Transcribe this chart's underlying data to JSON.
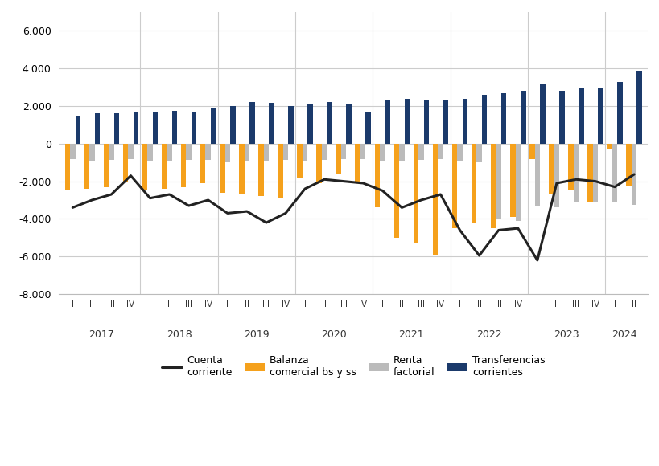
{
  "quarters": [
    "I",
    "II",
    "III",
    "IV",
    "I",
    "II",
    "III",
    "IV",
    "I",
    "II",
    "III",
    "IV",
    "I",
    "II",
    "III",
    "IV",
    "I",
    "II",
    "III",
    "IV",
    "I",
    "II",
    "III",
    "IV",
    "I",
    "II",
    "III",
    "IV",
    "I",
    "II"
  ],
  "year_labels": [
    "2017",
    "2018",
    "2019",
    "2020",
    "2021",
    "2022",
    "2023",
    "2024"
  ],
  "year_starts": [
    0,
    4,
    8,
    12,
    16,
    20,
    24,
    28
  ],
  "year_ends": [
    3,
    7,
    11,
    15,
    19,
    23,
    27,
    29
  ],
  "balanza_comercial": [
    -2500,
    -2400,
    -2300,
    -2000,
    -2500,
    -2400,
    -2300,
    -2100,
    -2600,
    -2700,
    -2800,
    -2900,
    -1800,
    -2100,
    -1600,
    -2000,
    -3400,
    -5026,
    -5258,
    -5958,
    -4500,
    -4200,
    -4500,
    -3900,
    -800,
    -2700,
    -2500,
    -3100,
    -300,
    -2247
  ],
  "renta_factorial": [
    -800,
    -900,
    -850,
    -800,
    -900,
    -900,
    -850,
    -850,
    -1000,
    -900,
    -900,
    -850,
    -900,
    -850,
    -800,
    -800,
    -900,
    -900,
    -850,
    -800,
    -900,
    -1000,
    -4000,
    -4100,
    -3300,
    -3400,
    -3100,
    -3100,
    -3100,
    -3252
  ],
  "transferencias_corrientes": [
    1450,
    1600,
    1600,
    1650,
    1650,
    1750,
    1700,
    1900,
    2000,
    2200,
    2150,
    2000,
    2100,
    2200,
    2100,
    1700,
    2300,
    2400,
    2300,
    2300,
    2400,
    2600,
    2700,
    2800,
    3200,
    2800,
    3000,
    3000,
    3300,
    3869
  ],
  "cuenta_corriente": [
    -3400,
    -3000,
    -2700,
    -1700,
    -2900,
    -2700,
    -3300,
    -3000,
    -3700,
    -3600,
    -4200,
    -3700,
    -2400,
    -1900,
    -2000,
    -2100,
    -2500,
    -3400,
    -3000,
    -2700,
    -4600,
    -5950,
    -4600,
    -4500,
    -6200,
    -2100,
    -1900,
    -2000,
    -2300,
    -1630
  ],
  "bar_width": 0.27,
  "orange_color": "#F5A11C",
  "gray_color": "#BBBBBB",
  "navy_color": "#1B3A6B",
  "line_color": "#222222",
  "ylim_min": -8000,
  "ylim_max": 7000,
  "yticks": [
    -8000,
    -6000,
    -4000,
    -2000,
    0,
    2000,
    4000,
    6000
  ],
  "background_color": "#FFFFFF",
  "grid_color": "#CCCCCC",
  "grid_linewidth": 0.8
}
